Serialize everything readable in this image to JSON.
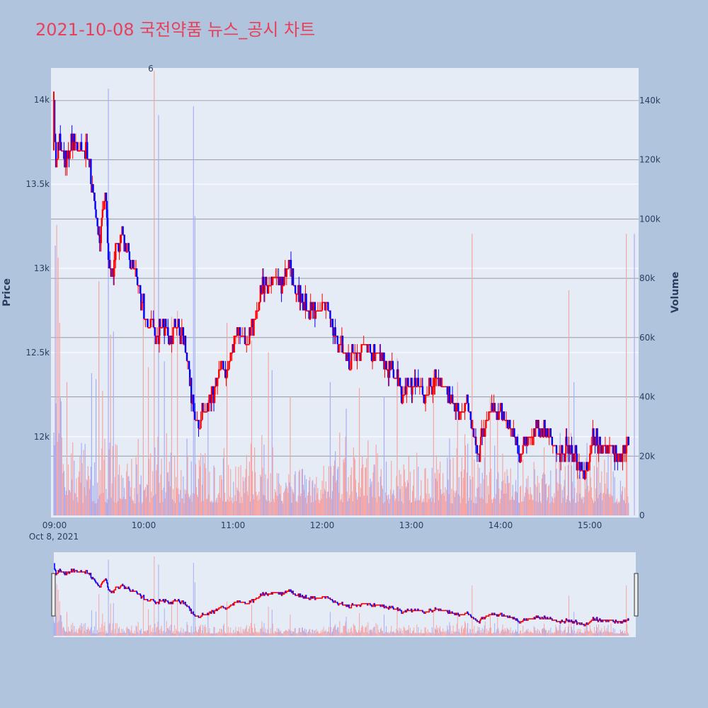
{
  "chart_data": {
    "type": "candlestick",
    "title": "2021-10-08 국전약품 뉴스_공시 차트",
    "date_label": "Oct 8, 2021",
    "ylabel": "Price",
    "y2label": "Volume",
    "price_ticks": [
      "14k",
      "13.5k",
      "13k",
      "12.5k",
      "12k"
    ],
    "price_tick_values": [
      14000,
      13500,
      13000,
      12500,
      12000
    ],
    "volume_ticks": [
      "140k",
      "120k",
      "100k",
      "80k",
      "60k",
      "40k",
      "20k",
      "0"
    ],
    "volume_tick_values": [
      140000,
      120000,
      100000,
      80000,
      60000,
      40000,
      20000,
      0
    ],
    "time_ticks": [
      "09:00",
      "10:00",
      "11:00",
      "12:00",
      "13:00",
      "14:00",
      "15:00"
    ],
    "price_range": [
      11520,
      14190
    ],
    "volume_range": [
      0,
      150000
    ],
    "annotation": "6",
    "price_path": [
      [
        0,
        14000
      ],
      [
        3,
        13600
      ],
      [
        8,
        13750
      ],
      [
        15,
        13650
      ],
      [
        25,
        13750
      ],
      [
        35,
        13700
      ],
      [
        42,
        13700
      ],
      [
        48,
        13650
      ],
      [
        55,
        13400
      ],
      [
        60,
        13250
      ],
      [
        63,
        13150
      ],
      [
        68,
        13400
      ],
      [
        72,
        13400
      ],
      [
        75,
        13050
      ],
      [
        80,
        12950
      ],
      [
        88,
        13150
      ],
      [
        95,
        13200
      ],
      [
        100,
        13100
      ],
      [
        107,
        13050
      ],
      [
        112,
        13000
      ],
      [
        118,
        12850
      ],
      [
        125,
        12750
      ],
      [
        130,
        12650
      ],
      [
        135,
        12700
      ],
      [
        140,
        12600
      ],
      [
        150,
        12650
      ],
      [
        160,
        12600
      ],
      [
        170,
        12650
      ],
      [
        180,
        12550
      ],
      [
        185,
        12400
      ],
      [
        190,
        12200
      ],
      [
        195,
        12150
      ],
      [
        200,
        12050
      ],
      [
        205,
        12150
      ],
      [
        210,
        12200
      ],
      [
        215,
        12200
      ],
      [
        222,
        12300
      ],
      [
        228,
        12400
      ],
      [
        235,
        12400
      ],
      [
        240,
        12400
      ],
      [
        245,
        12550
      ],
      [
        250,
        12600
      ],
      [
        255,
        12650
      ],
      [
        262,
        12600
      ],
      [
        268,
        12550
      ],
      [
        272,
        12650
      ],
      [
        278,
        12700
      ],
      [
        282,
        12800
      ],
      [
        288,
        12900
      ],
      [
        295,
        12900
      ],
      [
        300,
        12950
      ],
      [
        308,
        12950
      ],
      [
        315,
        12900
      ],
      [
        320,
        13000
      ],
      [
        325,
        13000
      ],
      [
        330,
        12900
      ],
      [
        335,
        12850
      ],
      [
        342,
        12800
      ],
      [
        350,
        12750
      ],
      [
        355,
        12800
      ],
      [
        362,
        12750
      ],
      [
        368,
        12750
      ],
      [
        372,
        12800
      ],
      [
        378,
        12750
      ],
      [
        385,
        12650
      ],
      [
        392,
        12550
      ],
      [
        398,
        12550
      ],
      [
        405,
        12450
      ],
      [
        412,
        12500
      ],
      [
        420,
        12500
      ],
      [
        425,
        12550
      ],
      [
        430,
        12550
      ],
      [
        438,
        12500
      ],
      [
        445,
        12500
      ],
      [
        452,
        12450
      ],
      [
        460,
        12400
      ],
      [
        470,
        12350
      ],
      [
        480,
        12250
      ],
      [
        490,
        12300
      ],
      [
        500,
        12300
      ],
      [
        510,
        12250
      ],
      [
        520,
        12300
      ],
      [
        528,
        12350
      ],
      [
        535,
        12300
      ],
      [
        545,
        12250
      ],
      [
        552,
        12150
      ],
      [
        560,
        12150
      ],
      [
        568,
        12200
      ],
      [
        575,
        12050
      ],
      [
        580,
        11950
      ],
      [
        585,
        11900
      ],
      [
        590,
        12050
      ],
      [
        600,
        12150
      ],
      [
        610,
        12150
      ],
      [
        620,
        12100
      ],
      [
        628,
        12050
      ],
      [
        635,
        11950
      ],
      [
        640,
        11900
      ],
      [
        648,
        11950
      ],
      [
        655,
        12000
      ],
      [
        665,
        12050
      ],
      [
        672,
        12050
      ],
      [
        680,
        12000
      ],
      [
        688,
        11950
      ],
      [
        695,
        11900
      ],
      [
        700,
        11900
      ],
      [
        708,
        11950
      ],
      [
        715,
        11900
      ],
      [
        722,
        11850
      ],
      [
        728,
        11800
      ],
      [
        735,
        11850
      ],
      [
        742,
        12000
      ],
      [
        750,
        11950
      ],
      [
        758,
        11950
      ],
      [
        765,
        11950
      ],
      [
        772,
        11900
      ],
      [
        780,
        11900
      ],
      [
        785,
        11950
      ],
      [
        790,
        11950
      ]
    ],
    "volume_spikes": [
      [
        2,
        91000
      ],
      [
        4,
        98000
      ],
      [
        6,
        87000
      ],
      [
        8,
        65000
      ],
      [
        18,
        45000
      ],
      [
        52,
        48000
      ],
      [
        58,
        46000
      ],
      [
        62,
        79000
      ],
      [
        67,
        42000
      ],
      [
        75,
        144000
      ],
      [
        78,
        61000
      ],
      [
        82,
        62000
      ],
      [
        123,
        74000
      ],
      [
        130,
        50000
      ],
      [
        138,
        150000
      ],
      [
        144,
        135000
      ],
      [
        152,
        52000
      ],
      [
        162,
        67000
      ],
      [
        170,
        69000
      ],
      [
        192,
        138000
      ],
      [
        194,
        101000
      ],
      [
        212,
        39000
      ],
      [
        238,
        65000
      ],
      [
        272,
        59000
      ],
      [
        295,
        55000
      ],
      [
        300,
        49000
      ],
      [
        325,
        40000
      ],
      [
        380,
        45000
      ],
      [
        402,
        36000
      ],
      [
        420,
        43000
      ],
      [
        454,
        40000
      ],
      [
        472,
        53000
      ],
      [
        522,
        49000
      ],
      [
        555,
        45000
      ],
      [
        575,
        95000
      ],
      [
        600,
        40000
      ],
      [
        610,
        35000
      ],
      [
        708,
        76000
      ],
      [
        715,
        45000
      ],
      [
        787,
        95000
      ]
    ]
  }
}
